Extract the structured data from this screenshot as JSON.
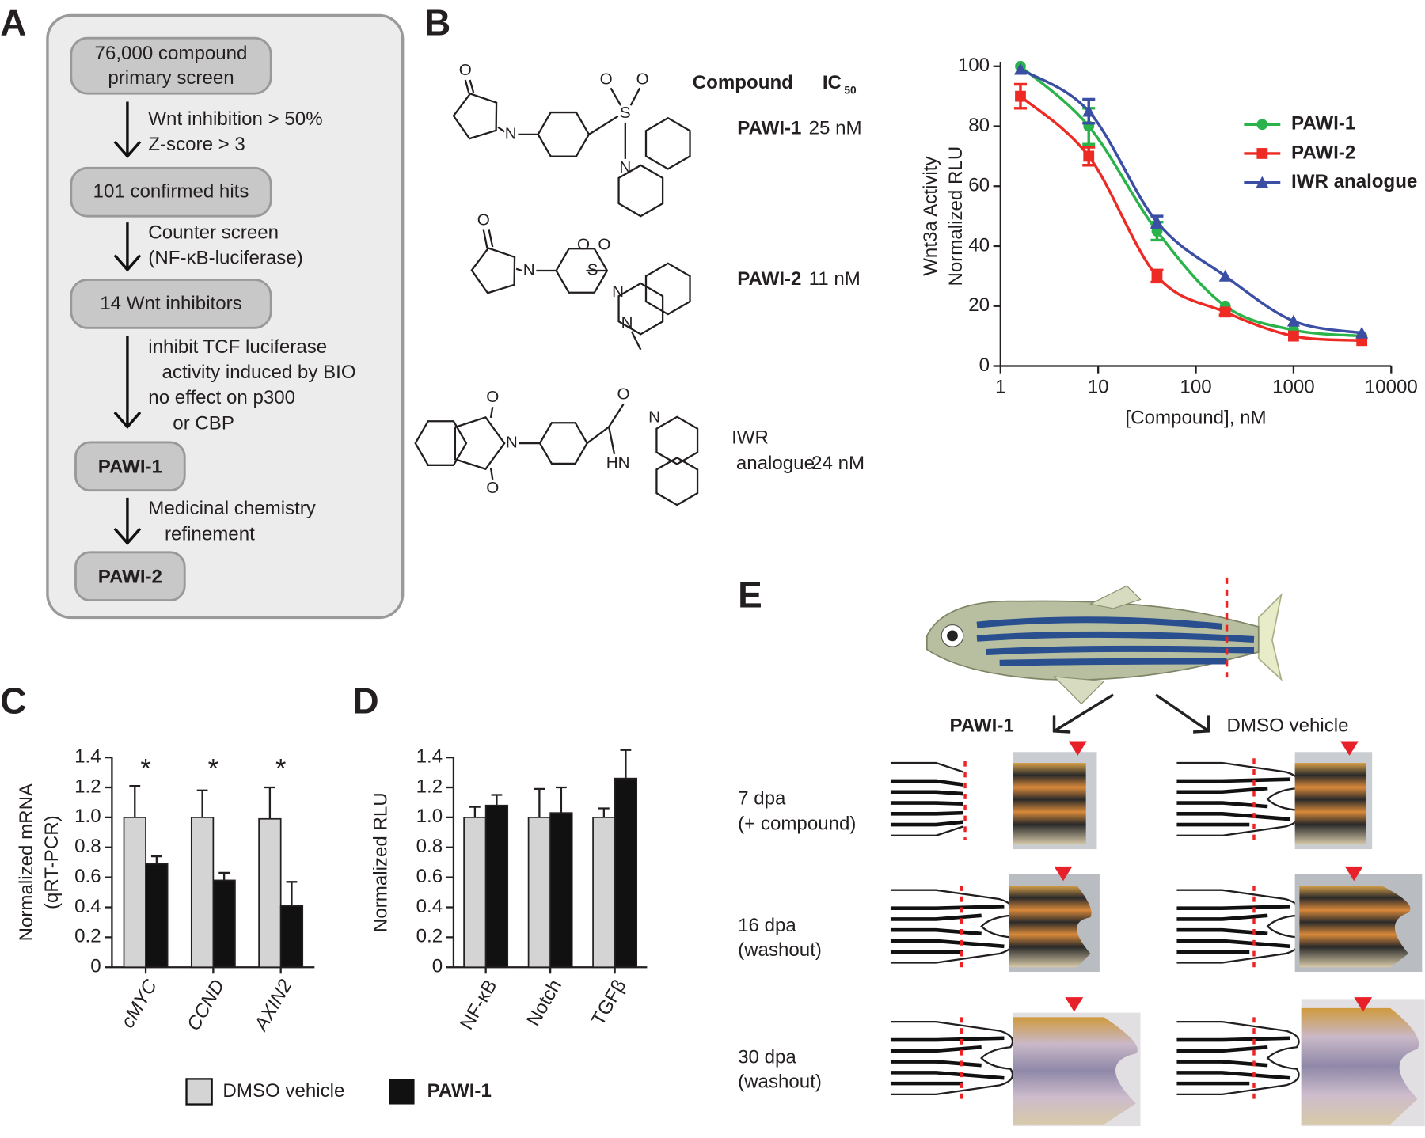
{
  "panel_labels": [
    "A",
    "B",
    "C",
    "D",
    "E"
  ],
  "flowchart": {
    "boxes": [
      [
        "76,000 compound",
        "primary screen"
      ],
      [
        "101 confirmed hits"
      ],
      [
        "14 Wnt inhibitors"
      ],
      [
        "PAWI-1"
      ],
      [
        "PAWI-2"
      ]
    ],
    "steps": [
      [
        "Wnt inhibition > 50%",
        "Z-score > 3"
      ],
      [
        "Counter screen",
        "(NF-κB-luciferase)"
      ],
      [
        "inhibit TCF luciferase",
        "activity induced by BIO",
        "no effect on p300",
        "or CBP"
      ],
      [
        "Medicinal chemistry",
        "refinement"
      ]
    ]
  },
  "table": {
    "compound_header": "Compound",
    "ic_header": "IC",
    "ic_header_subscript": "50",
    "rows": [
      {
        "compound": [
          "PAWI-1"
        ],
        "ic50": "25 nM"
      },
      {
        "compound": [
          "PAWI-2"
        ],
        "ic50": "11 nM"
      },
      {
        "compound": [
          "IWR",
          "analogue"
        ],
        "ic50": "24 nM"
      }
    ]
  },
  "structures": [
    {
      "atoms": [
        "O",
        "N",
        "O",
        "O",
        "S",
        "N"
      ]
    },
    {
      "atoms": [
        "O",
        "N",
        "O",
        "O",
        "S",
        "N",
        "N"
      ]
    },
    {
      "atoms": [
        "O",
        "N",
        "O",
        "O",
        "N",
        "HN"
      ]
    }
  ],
  "chart_data": [
    {
      "type": "line",
      "xlabel": "[Compound], nM",
      "ylabel": [
        "Wnt3a Activity",
        "Normalized RLU"
      ],
      "x": [
        1.6,
        8,
        40,
        200,
        1000,
        5000
      ],
      "xlim": [
        1,
        10000
      ],
      "xticks": [
        1,
        10,
        100,
        1000,
        10000
      ],
      "xscale": "log",
      "ylim": [
        0,
        100
      ],
      "yticks": [
        0,
        20,
        40,
        60,
        80,
        100
      ],
      "legend": "upper right",
      "series": [
        {
          "name": "PAWI-1",
          "color": "#2bb34b",
          "marker": "circle",
          "values": [
            100,
            80,
            45,
            20,
            12,
            10
          ],
          "error": [
            null,
            6,
            3,
            null,
            null,
            null
          ]
        },
        {
          "name": "PAWI-2",
          "color": "#ee2a24",
          "marker": "square",
          "values": [
            90,
            70,
            30,
            18,
            10,
            8.5
          ],
          "error": [
            4,
            3,
            2,
            1,
            null,
            null
          ]
        },
        {
          "name": "IWR analogue",
          "color": "#3a4fa3",
          "marker": "triangle",
          "values": [
            99,
            85,
            48,
            30,
            15,
            11
          ],
          "error": [
            null,
            4,
            2,
            null,
            null,
            null
          ]
        }
      ]
    },
    {
      "type": "bar",
      "ylabel": [
        "Normalized mRNA",
        "(qRT-PCR)"
      ],
      "categories": [
        "cMYC",
        "CCND",
        "AXIN2"
      ],
      "ylim": [
        0,
        1.4
      ],
      "yticks": [
        0,
        0.2,
        0.4,
        0.6,
        0.8,
        {
          "value": 1,
          "label": "1.0"
        },
        1.2,
        1.4
      ],
      "annotations": [
        "*",
        "*",
        "*"
      ],
      "series": [
        {
          "name": "DMSO vehicle",
          "color": "#d4d4d4",
          "values": [
            1.0,
            1.0,
            0.99
          ],
          "error": [
            0.21,
            0.18,
            0.21
          ]
        },
        {
          "name": "PAWI-1",
          "color": "#111111",
          "values": [
            0.69,
            0.58,
            0.41
          ],
          "error": [
            0.05,
            0.05,
            0.16
          ]
        }
      ]
    },
    {
      "type": "bar",
      "ylabel": [
        "Normalized RLU"
      ],
      "categories": [
        "NF-κB",
        "Notch",
        "TGFβ"
      ],
      "ylim": [
        0,
        1.4
      ],
      "yticks": [
        0,
        0.2,
        0.4,
        0.6,
        0.8,
        {
          "value": 1,
          "label": "1.0"
        },
        1.2,
        1.4
      ],
      "series": [
        {
          "color": "#d4d4d4",
          "values": [
            1.0,
            1.0,
            1.0
          ],
          "error": [
            0.07,
            0.19,
            0.06
          ]
        },
        {
          "color": "#111111",
          "values": [
            1.08,
            1.03,
            1.26
          ],
          "error": [
            0.07,
            0.17,
            0.19
          ]
        }
      ]
    }
  ],
  "panel_e": {
    "columns": [
      "PAWI-1",
      "DMSO vehicle"
    ],
    "rows": [
      [
        "7 dpa",
        "(+ compound)"
      ],
      [
        "16 dpa",
        "(washout)"
      ],
      [
        "30 dpa",
        "(washout)"
      ]
    ]
  }
}
